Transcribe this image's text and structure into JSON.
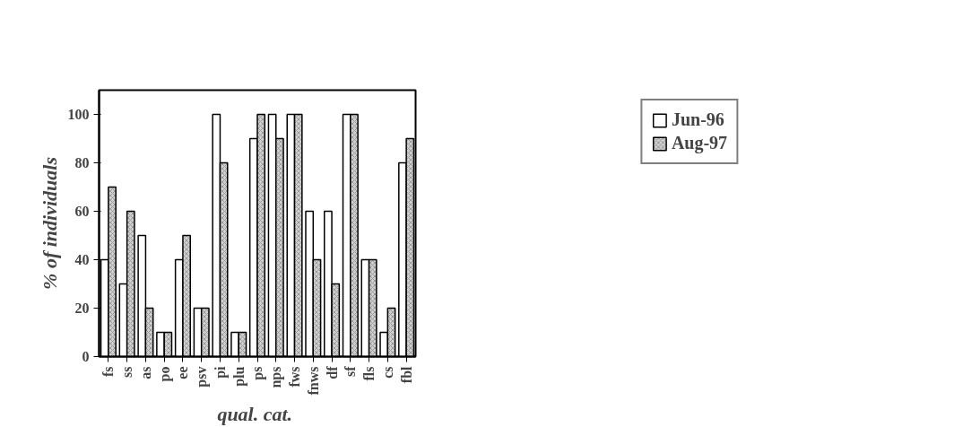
{
  "chart_data": {
    "type": "bar",
    "xlabel": "qual.  cat.",
    "ylabel": "% of individuals",
    "categories": [
      "fs",
      "ss",
      "as",
      "po",
      "ee",
      "psv",
      "pi",
      "plu",
      "ps",
      "nps",
      "fws",
      "fnws",
      "df",
      "sf",
      "fls",
      "cs",
      "fbl"
    ],
    "series": [
      {
        "name": "Jun-96",
        "color": "#ffffff",
        "values": [
          40,
          30,
          50,
          10,
          40,
          20,
          100,
          10,
          90,
          100,
          100,
          60,
          60,
          100,
          40,
          10,
          80
        ]
      },
      {
        "name": "Aug-97",
        "color": "#d0d0d0",
        "values": [
          70,
          60,
          20,
          10,
          50,
          20,
          80,
          10,
          100,
          90,
          100,
          40,
          30,
          100,
          40,
          20,
          90
        ]
      }
    ],
    "ylim": [
      0,
      110
    ],
    "yticks": [
      0,
      20,
      40,
      60,
      80,
      100
    ],
    "grid": false,
    "legend": "top right"
  }
}
